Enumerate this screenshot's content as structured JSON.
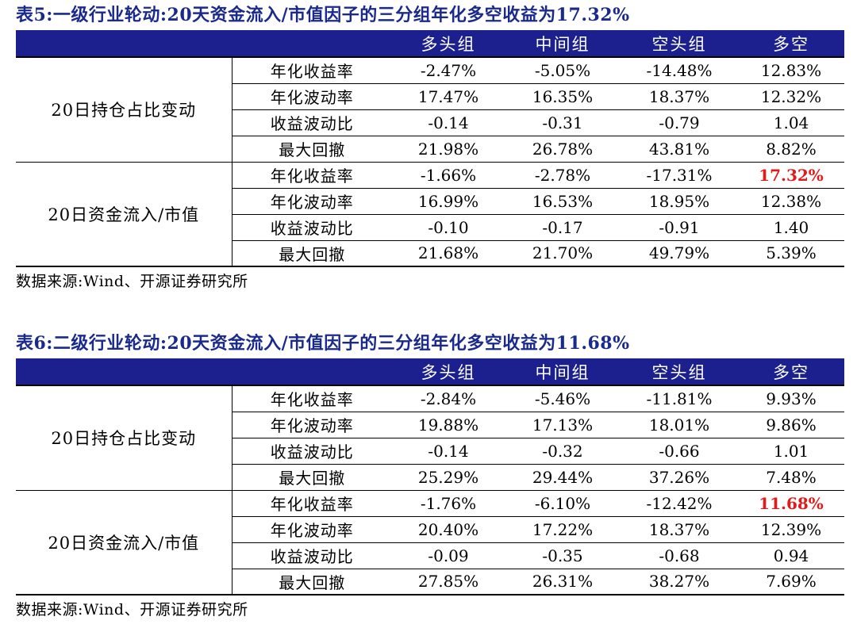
{
  "colors": {
    "title": "#1a2a8c",
    "header_bg": "#1c1f8e",
    "highlight": "#e11b1b"
  },
  "tables": [
    {
      "title": "表5:一级行业轮动:20天资金流入/市值因子的三分组年化多空收益为17.32%",
      "headers": [
        "",
        "",
        "多头组",
        "中间组",
        "空头组",
        "多空"
      ],
      "groups": [
        {
          "label": "20日持仓占比变动",
          "rows": [
            {
              "metric": "年化收益率",
              "values": [
                "-2.47%",
                "-5.05%",
                "-14.48%",
                "12.83%"
              ]
            },
            {
              "metric": "年化波动率",
              "values": [
                "17.47%",
                "16.35%",
                "18.37%",
                "12.32%"
              ]
            },
            {
              "metric": "收益波动比",
              "values": [
                "-0.14",
                "-0.31",
                "-0.79",
                "1.04"
              ]
            },
            {
              "metric": "最大回撤",
              "values": [
                "21.98%",
                "26.78%",
                "43.81%",
                "8.82%"
              ]
            }
          ]
        },
        {
          "label": "20日资金流入/市值",
          "rows": [
            {
              "metric": "年化收益率",
              "values": [
                "-1.66%",
                "-2.78%",
                "-17.31%",
                "17.32%"
              ]
            },
            {
              "metric": "年化波动率",
              "values": [
                "16.99%",
                "16.53%",
                "18.95%",
                "12.38%"
              ]
            },
            {
              "metric": "收益波动比",
              "values": [
                "-0.10",
                "-0.17",
                "-0.91",
                "1.40"
              ]
            },
            {
              "metric": "最大回撤",
              "values": [
                "21.68%",
                "21.70%",
                "49.79%",
                "5.39%"
              ]
            }
          ]
        }
      ],
      "source": "数据来源:Wind、开源证券研究所"
    },
    {
      "title": "表6:二级行业轮动:20天资金流入/市值因子的三分组年化多空收益为11.68%",
      "headers": [
        "",
        "",
        "多头组",
        "中间组",
        "空头组",
        "多空"
      ],
      "groups": [
        {
          "label": "20日持仓占比变动",
          "rows": [
            {
              "metric": "年化收益率",
              "values": [
                "-2.84%",
                "-5.46%",
                "-11.81%",
                "9.93%"
              ]
            },
            {
              "metric": "年化波动率",
              "values": [
                "19.88%",
                "17.13%",
                "18.01%",
                "9.86%"
              ]
            },
            {
              "metric": "收益波动比",
              "values": [
                "-0.14",
                "-0.32",
                "-0.66",
                "1.01"
              ]
            },
            {
              "metric": "最大回撤",
              "values": [
                "25.29%",
                "29.44%",
                "37.26%",
                "7.48%"
              ]
            }
          ]
        },
        {
          "label": "20日资金流入/市值",
          "rows": [
            {
              "metric": "年化收益率",
              "values": [
                "-1.76%",
                "-6.10%",
                "-12.42%",
                "11.68%"
              ]
            },
            {
              "metric": "年化波动率",
              "values": [
                "20.40%",
                "17.22%",
                "18.37%",
                "12.39%"
              ]
            },
            {
              "metric": "收益波动比",
              "values": [
                "-0.09",
                "-0.35",
                "-0.68",
                "0.94"
              ]
            },
            {
              "metric": "最大回撤",
              "values": [
                "27.85%",
                "26.31%",
                "38.27%",
                "7.69%"
              ]
            }
          ]
        }
      ],
      "source": "数据来源:Wind、开源证券研究所"
    }
  ]
}
